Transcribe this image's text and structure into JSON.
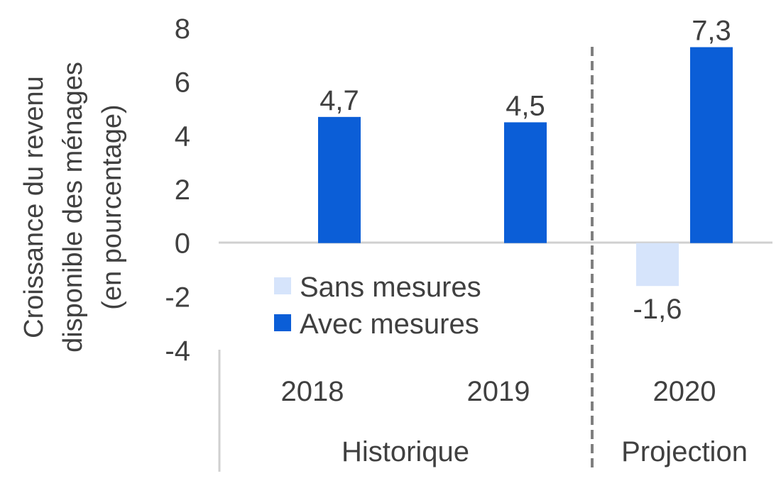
{
  "chart_data": {
    "type": "bar",
    "ylabel_lines": [
      "Croissance du revenu",
      "disponible des ménages",
      "(en pourcentage)"
    ],
    "ylim": [
      -4,
      8
    ],
    "yticks": [
      8,
      6,
      4,
      2,
      0,
      -2,
      -4
    ],
    "ytick_labels": [
      "8",
      "6",
      "4",
      "2",
      "0",
      "-2",
      "-4"
    ],
    "categories": [
      "2018",
      "2019",
      "2020"
    ],
    "groups": [
      {
        "label": "Historique",
        "categories": [
          "2018",
          "2019"
        ]
      },
      {
        "label": "Projection",
        "categories": [
          "2020"
        ]
      }
    ],
    "series": [
      {
        "name": "Sans mesures",
        "color": "#d6e4fb",
        "values": [
          null,
          null,
          -1.6
        ],
        "labels": [
          "",
          "",
          "-1,6"
        ]
      },
      {
        "name": "Avec mesures",
        "color": "#0b5ed7",
        "values": [
          4.7,
          4.5,
          7.3
        ],
        "labels": [
          "4,7",
          "4,5",
          "7,3"
        ]
      }
    ],
    "legend_position": "bottom-left (inside plot)",
    "grid": false
  }
}
